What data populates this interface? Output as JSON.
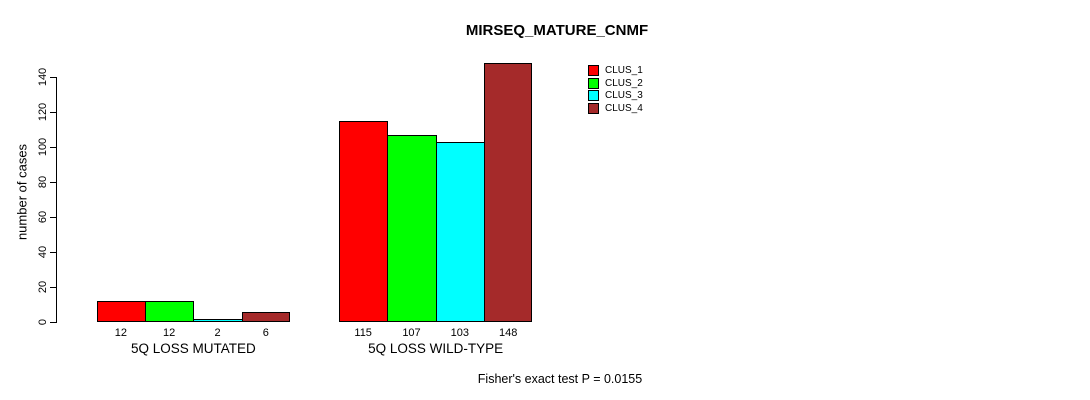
{
  "chart_data": {
    "type": "bar",
    "title": "MIRSEQ_MATURE_CNMF",
    "ylabel": "number of cases",
    "xlabel": "",
    "categories": [
      "5Q LOSS MUTATED",
      "5Q LOSS WILD-TYPE"
    ],
    "series": [
      {
        "name": "CLUS_1",
        "color": "#FF0000",
        "values": [
          12,
          115
        ]
      },
      {
        "name": "CLUS_2",
        "color": "#00FF00",
        "values": [
          12,
          107
        ]
      },
      {
        "name": "CLUS_3",
        "color": "#00FFFF",
        "values": [
          2,
          103
        ]
      },
      {
        "name": "CLUS_4",
        "color": "#A52A2A",
        "values": [
          6,
          148
        ]
      }
    ],
    "yticks": [
      0,
      20,
      40,
      60,
      80,
      100,
      120,
      140
    ],
    "ylim": [
      0,
      150
    ],
    "bar_value_labels": true,
    "grid": false,
    "legend_position": "top-right",
    "axis_color": "#000000",
    "annotation": "Fisher's exact test P = 0.0155"
  }
}
